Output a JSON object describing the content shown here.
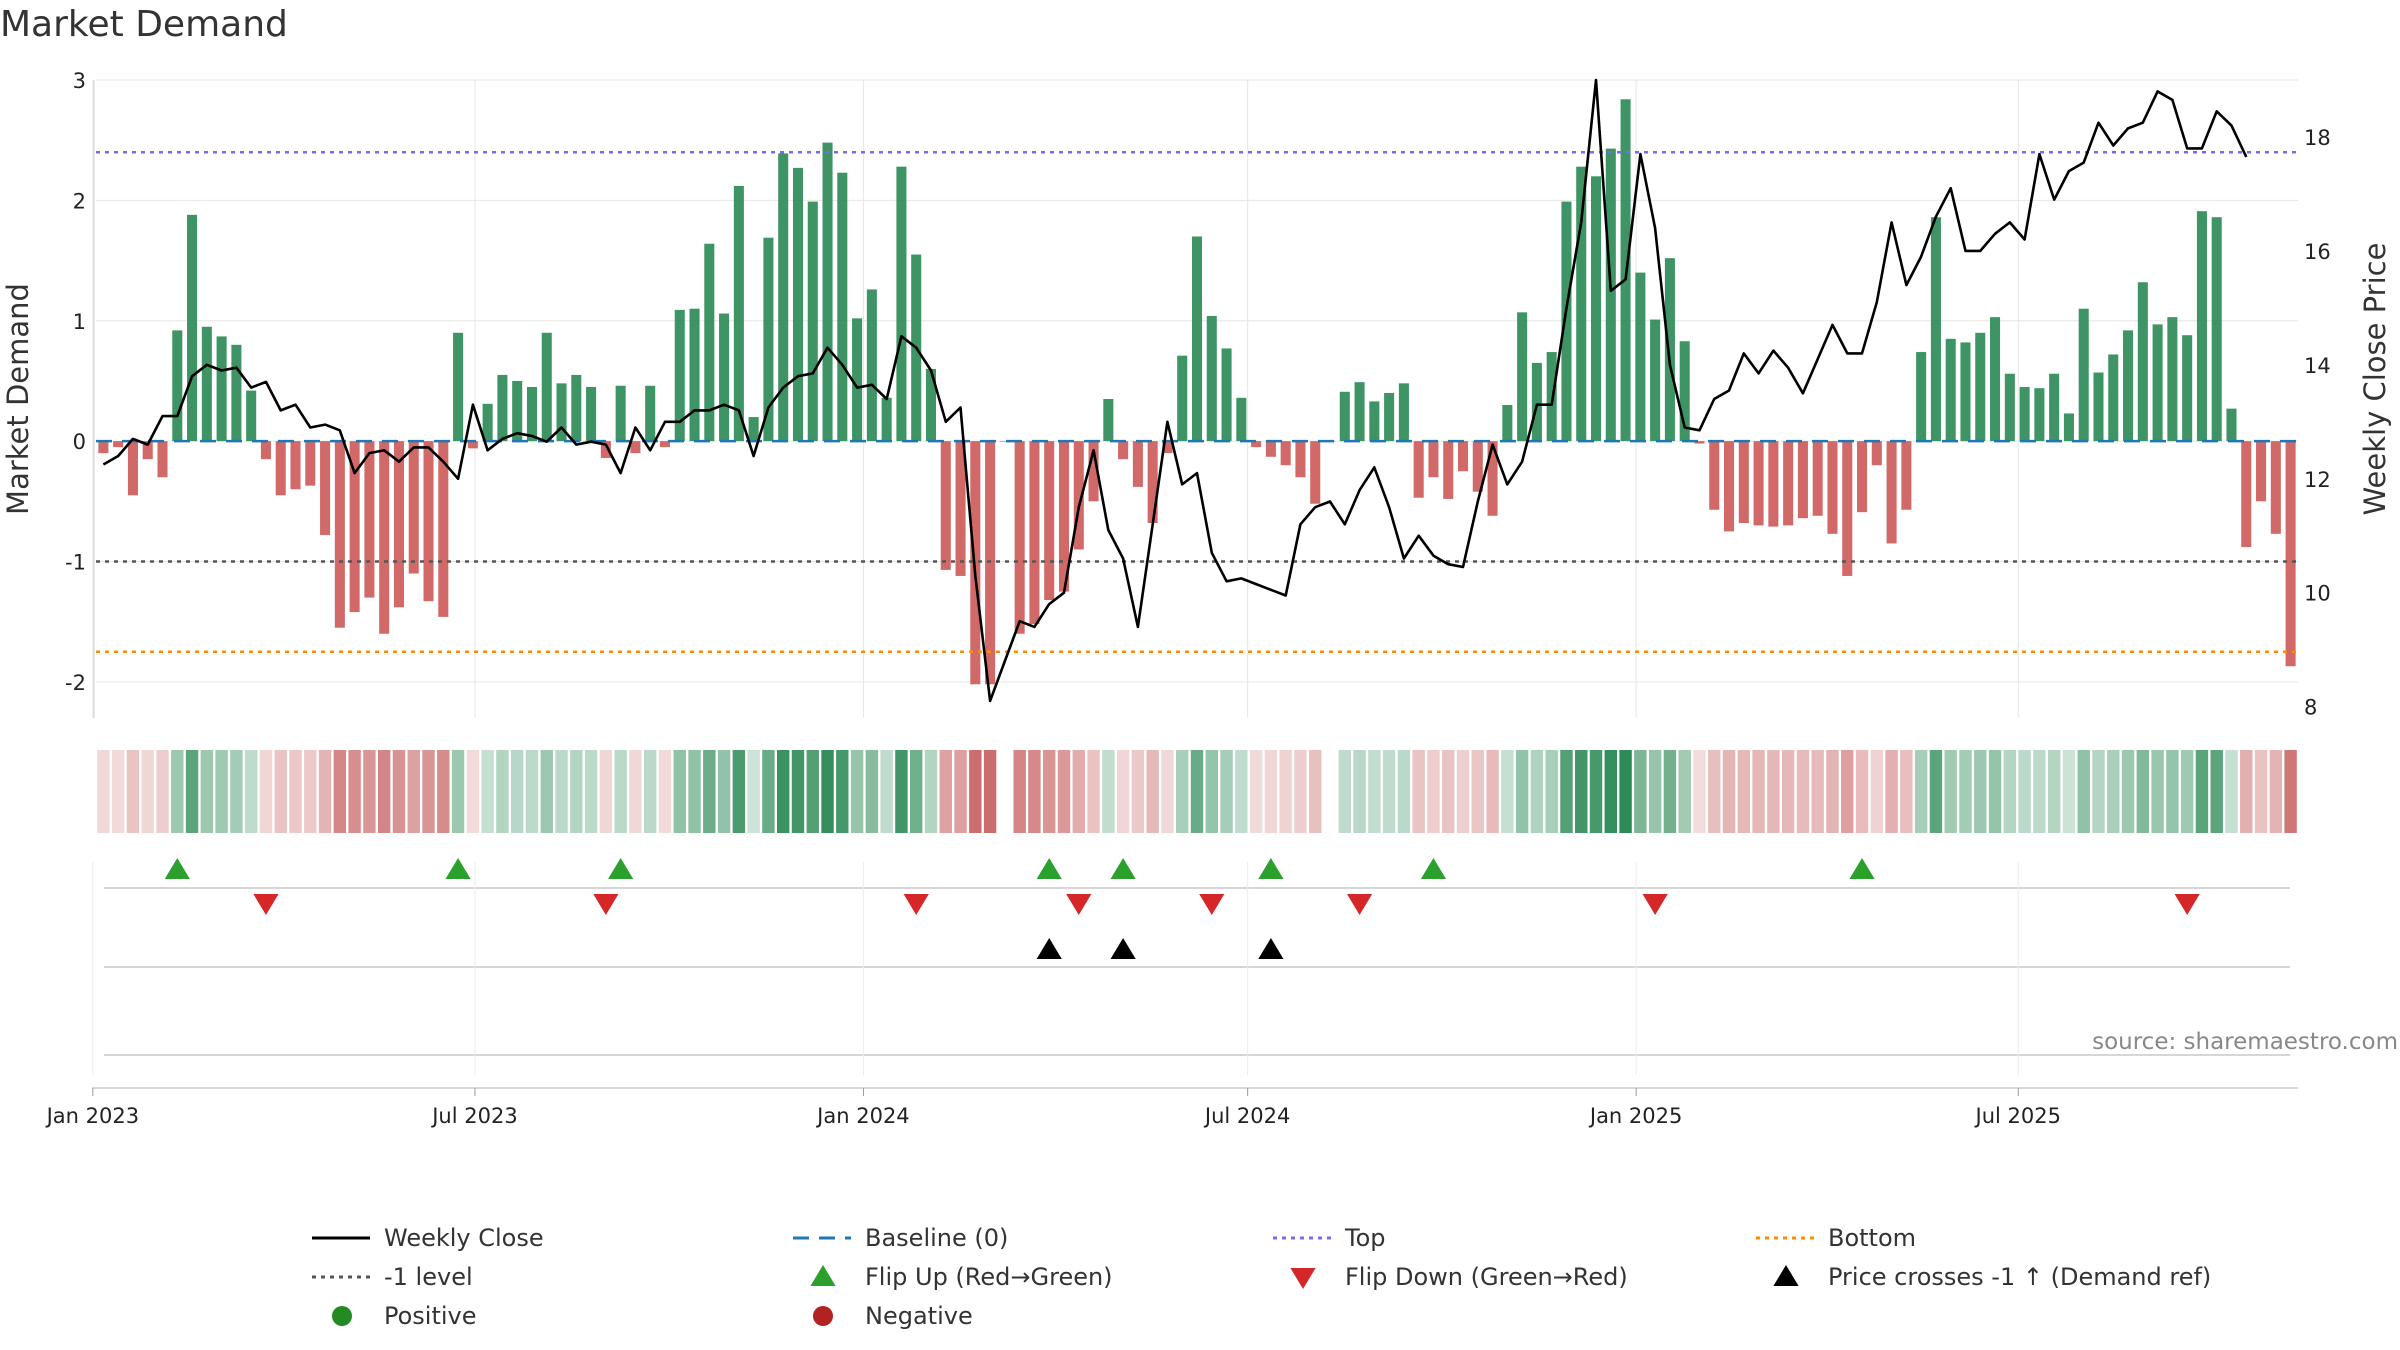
{
  "title": "Market Demand",
  "source": "source: sharemaestro.com",
  "colors": {
    "positive_bar": "#2e8b57",
    "negative_bar": "#cd5c5c",
    "close_line": "#000000",
    "baseline": "#1f77b4",
    "top": "#7b68ee",
    "minus_one": "#555555",
    "bottom": "#ff8c00",
    "flip_up": "#2ca02c",
    "flip_down": "#d62728",
    "price_cross": "#000000",
    "grid": "#e6e6e6"
  },
  "chart_data": {
    "type": "bar",
    "title": "Market Demand",
    "ylabel": "Market Demand",
    "y2label": "Weekly Close Price",
    "ylim": [
      -2.3,
      3.0
    ],
    "y2lim": [
      7.8,
      19.0
    ],
    "yticks": [
      -2,
      -1,
      0,
      1,
      2,
      3
    ],
    "y2ticks": [
      8,
      10,
      12,
      14,
      16,
      18
    ],
    "x_start": "2023-01-06",
    "x_step_days": 7,
    "x_ticks": [
      {
        "label": "Jan 2023",
        "date": "2023-01-01"
      },
      {
        "label": "Jul 2023",
        "date": "2023-07-01"
      },
      {
        "label": "Jan 2024",
        "date": "2024-01-01"
      },
      {
        "label": "Jul 2024",
        "date": "2024-07-01"
      },
      {
        "label": "Jan 2025",
        "date": "2025-01-01"
      },
      {
        "label": "Jul 2025",
        "date": "2025-07-01"
      }
    ],
    "reference_lines": {
      "baseline": 0,
      "top": 2.4,
      "minus_one": -1,
      "bottom": -1.75
    },
    "demand": [
      -0.1,
      -0.05,
      -0.45,
      -0.15,
      -0.3,
      0.92,
      1.88,
      0.95,
      0.87,
      0.8,
      0.42,
      -0.15,
      -0.45,
      -0.4,
      -0.37,
      -0.78,
      -1.55,
      -1.42,
      -1.3,
      -1.6,
      -1.38,
      -1.1,
      -1.33,
      -1.46,
      0.9,
      -0.06,
      0.31,
      0.55,
      0.5,
      0.45,
      0.9,
      0.48,
      0.55,
      0.45,
      -0.14,
      0.46,
      -0.1,
      0.46,
      -0.05,
      1.09,
      1.1,
      1.64,
      1.06,
      2.12,
      0.2,
      1.69,
      2.39,
      2.27,
      1.99,
      2.48,
      2.23,
      1.02,
      1.26,
      0.36,
      2.28,
      1.55,
      0.6,
      -1.07,
      -1.12,
      -2.02,
      -2.02,
      0,
      -1.6,
      -1.52,
      -1.32,
      -1.25,
      -0.9,
      -0.5,
      0.35,
      -0.15,
      -0.38,
      -0.68,
      -0.1,
      0.71,
      1.7,
      1.04,
      0.77,
      0.36,
      -0.05,
      -0.13,
      -0.2,
      -0.3,
      -0.52,
      0.0,
      0.41,
      0.49,
      0.33,
      0.4,
      0.48,
      -0.47,
      -0.3,
      -0.48,
      -0.25,
      -0.42,
      -0.62,
      0.3,
      1.07,
      0.65,
      0.74,
      1.99,
      2.28,
      2.2,
      2.43,
      2.84,
      1.4,
      1.01,
      1.52,
      0.83,
      -0.02,
      -0.57,
      -0.75,
      -0.68,
      -0.7,
      -0.71,
      -0.7,
      -0.64,
      -0.62,
      -0.77,
      -1.12,
      -0.59,
      -0.2,
      -0.85,
      -0.57,
      0.74,
      1.86,
      0.85,
      0.82,
      0.9,
      1.03,
      0.56,
      0.45,
      0.44,
      0.56,
      0.23,
      1.1,
      0.57,
      0.72,
      0.92,
      1.32,
      0.97,
      1.03,
      0.88,
      1.91,
      1.86,
      0.27,
      -0.88,
      -0.5,
      -0.77,
      -1.87
    ],
    "close": [
      12.25,
      12.4,
      12.7,
      12.6,
      13.1,
      13.1,
      13.8,
      14.0,
      13.9,
      13.95,
      13.6,
      13.7,
      13.2,
      13.3,
      12.9,
      12.95,
      12.85,
      12.1,
      12.45,
      12.5,
      12.3,
      12.55,
      12.55,
      12.3,
      12.0,
      13.3,
      12.5,
      12.7,
      12.8,
      12.75,
      12.65,
      12.9,
      12.6,
      12.65,
      12.6,
      12.1,
      12.9,
      12.5,
      13.0,
      13.0,
      13.2,
      13.2,
      13.3,
      13.2,
      12.4,
      13.25,
      13.6,
      13.8,
      13.85,
      14.3,
      14.0,
      13.6,
      13.65,
      13.4,
      14.5,
      14.3,
      13.9,
      13.0,
      13.25,
      10.3,
      8.1,
      8.8,
      9.5,
      9.4,
      9.8,
      10.0,
      11.5,
      12.5,
      11.1,
      10.6,
      9.4,
      11.2,
      13.0,
      11.9,
      12.1,
      10.7,
      10.2,
      10.25,
      10.15,
      10.05,
      9.95,
      11.2,
      11.5,
      11.6,
      11.2,
      11.8,
      12.2,
      11.5,
      10.6,
      11.0,
      10.65,
      10.5,
      10.45,
      11.6,
      12.6,
      11.9,
      12.3,
      13.3,
      13.3,
      15.0,
      16.5,
      19.0,
      15.3,
      15.5,
      17.7,
      16.4,
      14.0,
      12.9,
      12.85,
      13.4,
      13.55,
      14.2,
      13.85,
      14.25,
      13.95,
      13.5,
      14.1,
      14.7,
      14.2,
      14.2,
      15.1,
      16.5,
      15.4,
      15.9,
      16.6,
      17.1,
      16.0,
      16.0,
      16.3,
      16.5,
      16.2,
      17.7,
      16.9,
      17.4,
      17.55,
      18.25,
      17.85,
      18.15,
      18.25,
      18.8,
      18.65,
      17.8,
      17.8,
      18.45,
      18.2,
      17.65
    ],
    "flip_up_weeks": [
      5,
      24,
      35,
      64,
      69,
      79,
      90,
      119
    ],
    "flip_down_weeks": [
      11,
      34,
      55,
      66,
      75,
      85,
      105,
      141
    ],
    "price_cross_weeks": [
      64,
      69,
      79
    ],
    "legend": [
      {
        "label": "Weekly Close",
        "marker": "line",
        "color": "#000000"
      },
      {
        "label": "Baseline (0)",
        "marker": "dash",
        "color": "#1f77b4"
      },
      {
        "label": "Top",
        "marker": "dot",
        "color": "#7b68ee"
      },
      {
        "label": "Bottom",
        "marker": "dot",
        "color": "#ff8c00"
      },
      {
        "label": "-1 level",
        "marker": "dot",
        "color": "#555555"
      },
      {
        "label": "Flip Up (Red→Green)",
        "marker": "triangle-up",
        "color": "#2ca02c"
      },
      {
        "label": "Flip Down (Green→Red)",
        "marker": "triangle-down",
        "color": "#d62728"
      },
      {
        "label": "Price crosses -1 ↑ (Demand ref)",
        "marker": "triangle-up",
        "color": "#000000"
      },
      {
        "label": "Positive",
        "marker": "circle",
        "color": "#228b22"
      },
      {
        "label": "Negative",
        "marker": "circle",
        "color": "#b22222"
      }
    ]
  }
}
